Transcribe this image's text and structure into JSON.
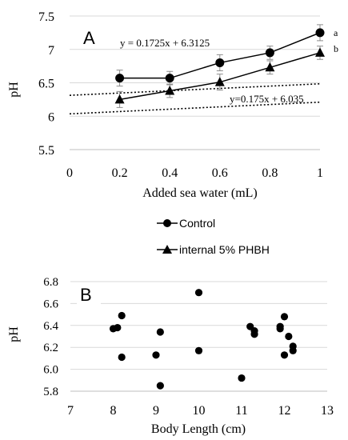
{
  "chart_data": [
    {
      "type": "line",
      "panel_label": "A",
      "xlabel": "Added sea water (mL)",
      "ylabel": "pH",
      "xlim": [
        0,
        1
      ],
      "ylim": [
        5.5,
        7.5
      ],
      "x_ticks": [
        "0",
        "0.2",
        "0.4",
        "0.6",
        "0.8",
        "1"
      ],
      "y_ticks": [
        "5.5",
        "6",
        "6.5",
        "7",
        "7.5"
      ],
      "grid": "horizontal",
      "legend_position": "bottom",
      "series": [
        {
          "name": "Control",
          "marker": "circle",
          "x": [
            0.2,
            0.4,
            0.6,
            0.8,
            1.0
          ],
          "y": [
            6.57,
            6.57,
            6.8,
            6.95,
            7.25
          ],
          "err": [
            0.12,
            0.1,
            0.12,
            0.1,
            0.12
          ],
          "trendline": {
            "slope": 0.1725,
            "intercept": 6.3125,
            "label": "y = 0.1725x + 6.3125"
          },
          "significance": "a"
        },
        {
          "name": "internal 5% PHBH",
          "marker": "triangle",
          "x": [
            0.2,
            0.4,
            0.6,
            0.8,
            1.0
          ],
          "y": [
            6.25,
            6.38,
            6.51,
            6.73,
            6.95
          ],
          "err": [
            0.12,
            0.1,
            0.12,
            0.1,
            0.1
          ],
          "trendline": {
            "slope": 0.175,
            "intercept": 6.035,
            "label": "y=0.175x + 6.035"
          },
          "significance": "b"
        }
      ]
    },
    {
      "type": "scatter",
      "panel_label": "B",
      "xlabel": "Body Length (cm)",
      "ylabel": "pH",
      "xlim": [
        7,
        13
      ],
      "ylim": [
        5.8,
        6.8
      ],
      "x_ticks": [
        "7",
        "8",
        "9",
        "10",
        "11",
        "12",
        "13"
      ],
      "y_ticks": [
        "5.8",
        "6.0",
        "6.2",
        "6.4",
        "6.6",
        "6.8"
      ],
      "grid": "horizontal",
      "points": [
        {
          "x": 8.0,
          "y": 6.37
        },
        {
          "x": 8.1,
          "y": 6.38
        },
        {
          "x": 8.2,
          "y": 6.49
        },
        {
          "x": 8.2,
          "y": 6.11
        },
        {
          "x": 9.0,
          "y": 6.13
        },
        {
          "x": 9.1,
          "y": 6.34
        },
        {
          "x": 9.1,
          "y": 5.85
        },
        {
          "x": 10.0,
          "y": 6.7
        },
        {
          "x": 10.0,
          "y": 6.17
        },
        {
          "x": 11.0,
          "y": 5.92
        },
        {
          "x": 11.2,
          "y": 6.39
        },
        {
          "x": 11.3,
          "y": 6.35
        },
        {
          "x": 11.3,
          "y": 6.32
        },
        {
          "x": 11.9,
          "y": 6.37
        },
        {
          "x": 11.9,
          "y": 6.39
        },
        {
          "x": 12.0,
          "y": 6.48
        },
        {
          "x": 12.0,
          "y": 6.13
        },
        {
          "x": 12.1,
          "y": 6.3
        },
        {
          "x": 12.2,
          "y": 6.21
        },
        {
          "x": 12.2,
          "y": 6.17
        }
      ]
    }
  ]
}
